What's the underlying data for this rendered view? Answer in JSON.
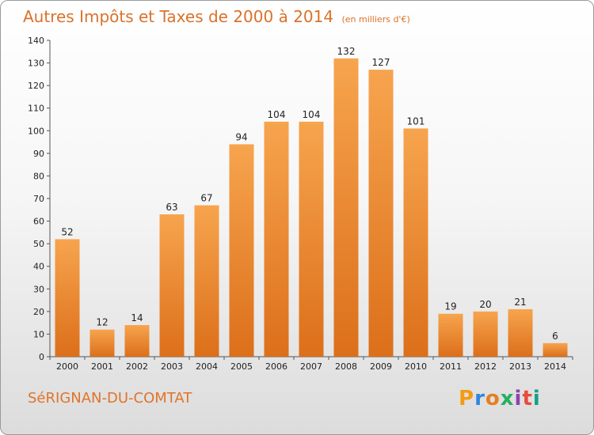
{
  "header": {
    "title": "Autres Impôts et Taxes de 2000 à 2014",
    "unit": "(en milliers d'€)"
  },
  "footer": {
    "commune": "SéRIGNAN-DU-COMTAT",
    "logo": "Proxiti"
  },
  "colors": {
    "title": "#d9722a",
    "bar_top": "#f7a44e",
    "bar_bottom": "#dc6f1a",
    "logo_letters": [
      "#f39c12",
      "#2e86de",
      "#e67e22",
      "#27ae60",
      "#8e44ad",
      "#e74c3c",
      "#16a085"
    ]
  },
  "chart_data": {
    "type": "bar",
    "title": "Autres Impôts et Taxes de 2000 à 2014",
    "subtitle": "(en milliers d'€)",
    "xlabel": "",
    "ylabel": "",
    "categories": [
      "2000",
      "2001",
      "2002",
      "2003",
      "2004",
      "2005",
      "2006",
      "2007",
      "2008",
      "2009",
      "2010",
      "2011",
      "2012",
      "2013",
      "2014"
    ],
    "values": [
      52,
      12,
      14,
      63,
      67,
      94,
      104,
      104,
      132,
      127,
      101,
      19,
      20,
      21,
      6
    ],
    "ylim": [
      0,
      140
    ],
    "yticks": [
      0,
      10,
      20,
      30,
      40,
      50,
      60,
      70,
      80,
      90,
      100,
      110,
      120,
      130,
      140
    ],
    "grid": false,
    "data_labels": true
  }
}
